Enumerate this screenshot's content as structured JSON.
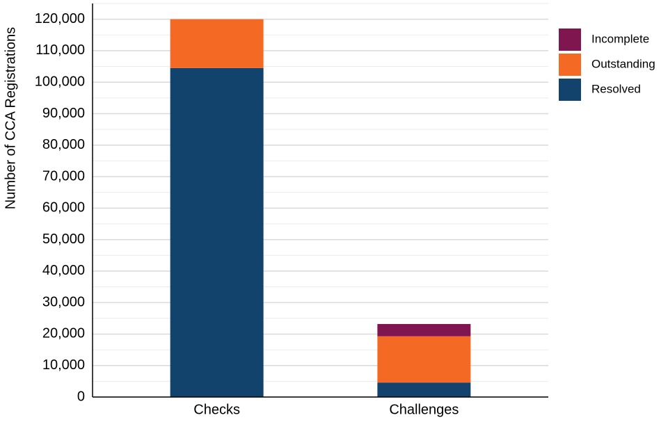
{
  "chart_data": {
    "type": "stacked_bar",
    "y_axis_label": "Number of CCA Registrations",
    "categories": [
      "Checks",
      "Challenges"
    ],
    "series": [
      {
        "name": "Resolved",
        "color": "#12436d",
        "values": [
          104500,
          4600
        ]
      },
      {
        "name": "Outstanding",
        "color": "#f46a25",
        "values": [
          15500,
          14700
        ]
      },
      {
        "name": "Incomplete",
        "color": "#801650",
        "values": [
          0,
          3900
        ]
      }
    ],
    "ylim": [
      0,
      125000
    ],
    "yticks": [
      0,
      {
        "value": 10000,
        "label": "10,000"
      },
      {
        "value": 20000,
        "label": "20,000"
      },
      {
        "value": 30000,
        "label": "30,000"
      },
      {
        "value": 40000,
        "label": "40,000"
      },
      {
        "value": 50000,
        "label": "50,000"
      },
      {
        "value": 60000,
        "label": "60,000"
      },
      {
        "value": 70000,
        "label": "70,000"
      },
      {
        "value": 80000,
        "label": "80,000"
      },
      {
        "value": 90000,
        "label": "90,000"
      },
      {
        "value": 100000,
        "label": "100,000"
      },
      {
        "value": 110000,
        "label": "110,000"
      },
      {
        "value": 120000,
        "label": "120,000"
      }
    ],
    "grid": true,
    "legend": "right"
  }
}
